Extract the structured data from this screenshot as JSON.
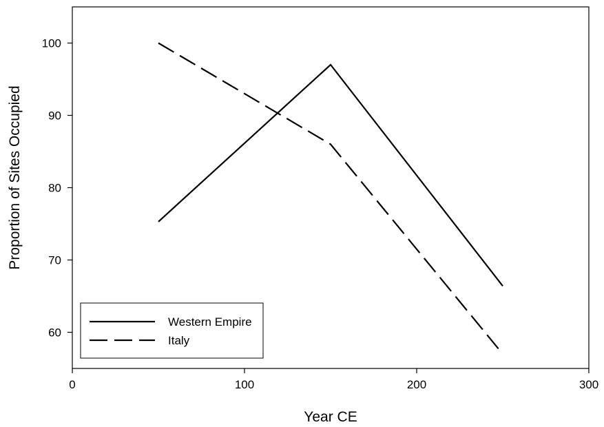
{
  "chart_data": {
    "type": "line",
    "title": "",
    "xlabel": "Year CE",
    "ylabel": "Proportion of Sites Occupied",
    "xlim": [
      0,
      300
    ],
    "ylim": [
      55,
      105
    ],
    "xticks": [
      0,
      100,
      200,
      300
    ],
    "yticks": [
      60,
      70,
      80,
      90,
      100
    ],
    "grid": false,
    "legend_position": "bottom-left",
    "series": [
      {
        "name": "Western Empire",
        "style": "solid",
        "color": "#000000",
        "x": [
          50,
          150,
          250
        ],
        "y": [
          75.3,
          97,
          66.4
        ]
      },
      {
        "name": "Italy",
        "style": "dashed",
        "color": "#000000",
        "x": [
          50,
          150,
          250
        ],
        "y": [
          100,
          86,
          57
        ]
      }
    ]
  }
}
